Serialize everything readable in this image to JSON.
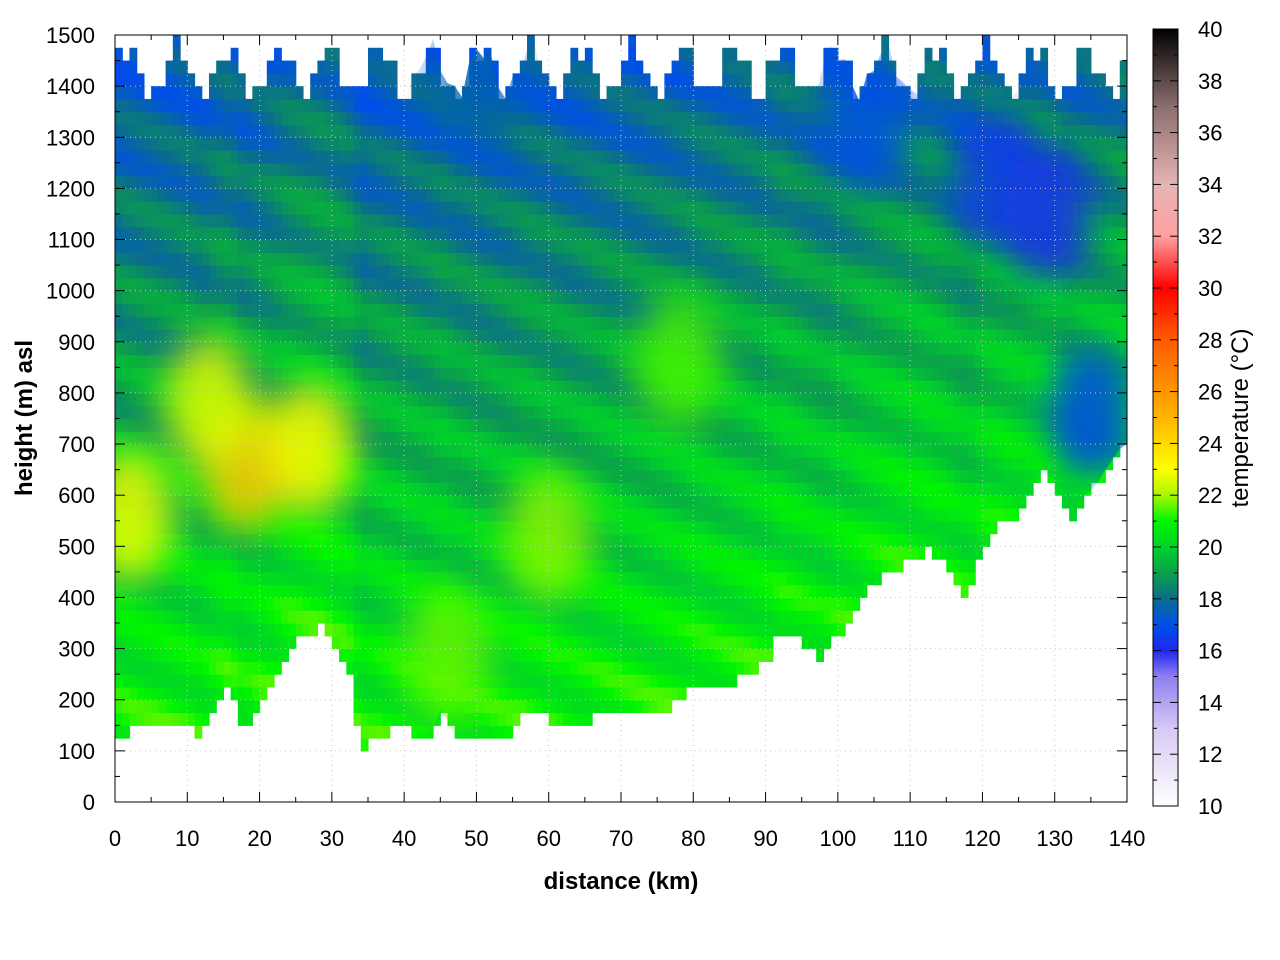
{
  "chart_data": {
    "type": "heatmap",
    "title": "",
    "xlabel": "distance (km)",
    "ylabel": "height (m) asl",
    "colorbar_label": "temperature (°C)",
    "xlim": [
      0,
      140
    ],
    "ylim": [
      0,
      1500
    ],
    "zlim": [
      10,
      40
    ],
    "x_ticks": [
      "0",
      "10",
      "20",
      "30",
      "40",
      "50",
      "60",
      "70",
      "80",
      "90",
      "100",
      "110",
      "120",
      "130",
      "140"
    ],
    "y_ticks": [
      "0",
      "100",
      "200",
      "300",
      "400",
      "500",
      "600",
      "700",
      "800",
      "900",
      "1000",
      "1100",
      "1200",
      "1300",
      "1400",
      "1500"
    ],
    "colorbar_ticks": [
      "10",
      "12",
      "14",
      "16",
      "18",
      "20",
      "22",
      "24",
      "26",
      "28",
      "30",
      "32",
      "34",
      "36",
      "38",
      "40"
    ],
    "grid": true,
    "colorscale": [
      {
        "value": 10,
        "color": "#ffffff"
      },
      {
        "value": 13,
        "color": "#d7c8f5"
      },
      {
        "value": 15,
        "color": "#8f7ff0"
      },
      {
        "value": 16,
        "color": "#1e28f0"
      },
      {
        "value": 17,
        "color": "#0050e6"
      },
      {
        "value": 18,
        "color": "#0a6e8c"
      },
      {
        "value": 19,
        "color": "#0aa04a"
      },
      {
        "value": 20,
        "color": "#00d22a"
      },
      {
        "value": 21,
        "color": "#00f500"
      },
      {
        "value": 22,
        "color": "#aaf500"
      },
      {
        "value": 23,
        "color": "#ffff00"
      },
      {
        "value": 25,
        "color": "#ffb400"
      },
      {
        "value": 28,
        "color": "#ff5a00"
      },
      {
        "value": 30,
        "color": "#ff0000"
      },
      {
        "value": 32,
        "color": "#ffa0a0"
      },
      {
        "value": 34,
        "color": "#e6b4b4"
      },
      {
        "value": 37,
        "color": "#8c6e6e"
      },
      {
        "value": 40,
        "color": "#000000"
      }
    ],
    "terrain_bottom": [
      [
        0,
        125
      ],
      [
        1,
        128
      ],
      [
        2,
        145
      ],
      [
        3,
        150
      ],
      [
        4,
        140
      ],
      [
        5,
        152
      ],
      [
        6,
        145
      ],
      [
        7,
        150
      ],
      [
        8,
        148
      ],
      [
        9,
        145
      ],
      [
        10,
        148
      ],
      [
        11,
        135
      ],
      [
        12,
        120
      ],
      [
        13,
        160
      ],
      [
        14,
        200
      ],
      [
        15,
        220
      ],
      [
        16,
        235
      ],
      [
        17,
        170
      ],
      [
        18,
        140
      ],
      [
        19,
        175
      ],
      [
        20,
        195
      ],
      [
        21,
        205
      ],
      [
        22,
        230
      ],
      [
        23,
        270
      ],
      [
        24,
        300
      ],
      [
        25,
        310
      ],
      [
        26,
        320
      ],
      [
        27,
        330
      ],
      [
        28,
        345
      ],
      [
        29,
        340
      ],
      [
        30,
        310
      ],
      [
        31,
        280
      ],
      [
        32,
        290
      ],
      [
        33,
        200
      ],
      [
        34,
        110
      ],
      [
        35,
        90
      ],
      [
        36,
        140
      ],
      [
        37,
        130
      ],
      [
        38,
        140
      ],
      [
        39,
        150
      ],
      [
        40,
        145
      ],
      [
        41,
        140
      ],
      [
        42,
        135
      ],
      [
        43,
        130
      ],
      [
        44,
        140
      ],
      [
        45,
        180
      ],
      [
        46,
        160
      ],
      [
        47,
        125
      ],
      [
        48,
        125
      ],
      [
        49,
        120
      ],
      [
        50,
        115
      ],
      [
        51,
        118
      ],
      [
        52,
        125
      ],
      [
        53,
        128
      ],
      [
        54,
        130
      ],
      [
        55,
        140
      ],
      [
        56,
        165
      ],
      [
        57,
        172
      ],
      [
        58,
        168
      ],
      [
        59,
        170
      ],
      [
        60,
        165
      ],
      [
        61,
        160
      ],
      [
        62,
        150
      ],
      [
        63,
        145
      ],
      [
        64,
        150
      ],
      [
        65,
        158
      ],
      [
        66,
        165
      ],
      [
        67,
        170
      ],
      [
        68,
        175
      ],
      [
        69,
        172
      ],
      [
        70,
        170
      ],
      [
        71,
        170
      ],
      [
        72,
        172
      ],
      [
        73,
        175
      ],
      [
        74,
        178
      ],
      [
        75,
        180
      ],
      [
        76,
        185
      ],
      [
        77,
        190
      ],
      [
        78,
        200
      ],
      [
        79,
        210
      ],
      [
        80,
        220
      ],
      [
        81,
        230
      ],
      [
        82,
        228
      ],
      [
        83,
        222
      ],
      [
        84,
        222
      ],
      [
        85,
        228
      ],
      [
        86,
        235
      ],
      [
        87,
        245
      ],
      [
        88,
        255
      ],
      [
        89,
        262
      ],
      [
        90,
        275
      ],
      [
        91,
        300
      ],
      [
        92,
        330
      ],
      [
        93,
        340
      ],
      [
        94,
        320
      ],
      [
        95,
        315
      ],
      [
        96,
        300
      ],
      [
        97,
        290
      ],
      [
        98,
        285
      ],
      [
        99,
        300
      ],
      [
        100,
        330
      ],
      [
        101,
        345
      ],
      [
        102,
        360
      ],
      [
        103,
        385
      ],
      [
        104,
        410
      ],
      [
        105,
        420
      ],
      [
        106,
        440
      ],
      [
        107,
        455
      ],
      [
        108,
        460
      ],
      [
        109,
        465
      ],
      [
        110,
        470
      ],
      [
        111,
        480
      ],
      [
        112,
        495
      ],
      [
        113,
        490
      ],
      [
        114,
        480
      ],
      [
        115,
        465
      ],
      [
        116,
        440
      ],
      [
        117,
        410
      ],
      [
        118,
        400
      ],
      [
        119,
        440
      ],
      [
        120,
        500
      ],
      [
        121,
        520
      ],
      [
        122,
        530
      ],
      [
        123,
        550
      ],
      [
        124,
        560
      ],
      [
        125,
        555
      ],
      [
        126,
        580
      ],
      [
        127,
        620
      ],
      [
        128,
        640
      ],
      [
        129,
        640
      ],
      [
        130,
        625
      ],
      [
        131,
        580
      ],
      [
        132,
        555
      ],
      [
        133,
        570
      ],
      [
        134,
        590
      ],
      [
        135,
        610
      ],
      [
        136,
        625
      ],
      [
        137,
        650
      ],
      [
        138,
        670
      ],
      [
        139,
        690
      ],
      [
        140,
        700
      ]
    ],
    "warm_cores": [
      {
        "x": 18,
        "y": 660,
        "value": 24.5
      },
      {
        "x": 27,
        "y": 690,
        "value": 23.2
      },
      {
        "x": 2,
        "y": 560,
        "value": 22.8
      },
      {
        "x": 13,
        "y": 780,
        "value": 22.6
      },
      {
        "x": 60,
        "y": 520,
        "value": 21.8
      },
      {
        "x": 46,
        "y": 290,
        "value": 21.6
      },
      {
        "x": 78,
        "y": 860,
        "value": 21.4
      }
    ],
    "cool_cores": [
      {
        "x": 129,
        "y": 1150,
        "value": 16.2
      },
      {
        "x": 122,
        "y": 1220,
        "value": 16.4
      },
      {
        "x": 104,
        "y": 1330,
        "value": 17.0
      },
      {
        "x": 50,
        "y": 1420,
        "value": 17.6
      },
      {
        "x": 135,
        "y": 760,
        "value": 16.8
      }
    ]
  }
}
